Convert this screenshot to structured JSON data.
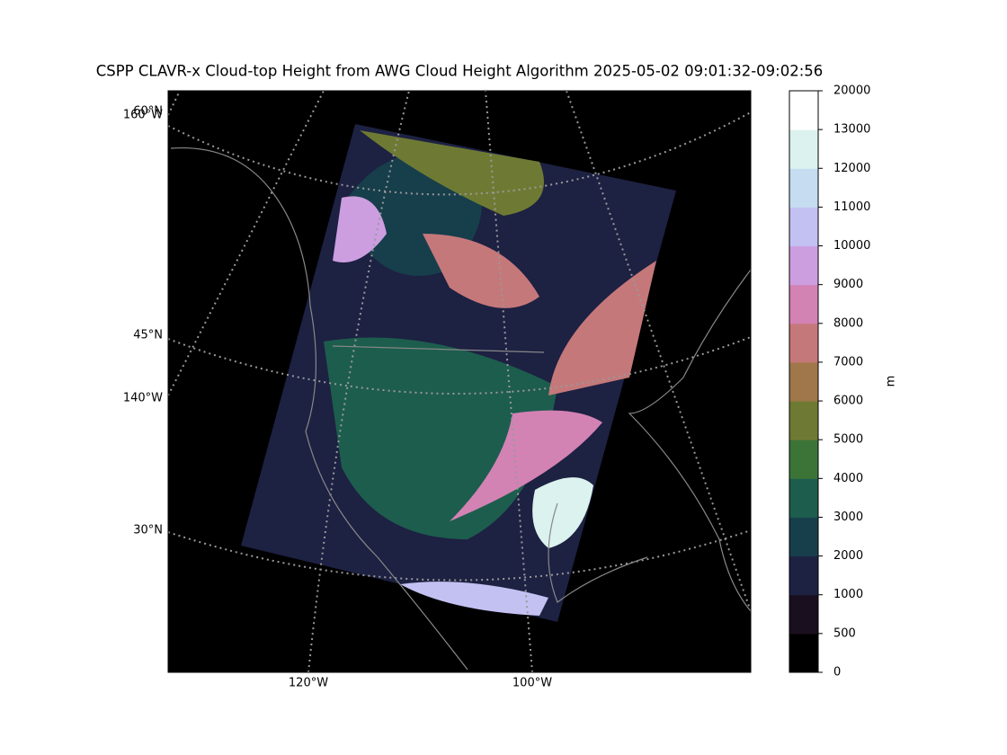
{
  "title": "CSPP CLAVR-x Cloud-top Height from AWG Cloud Height Algorithm 2025-05-02 09:01:32-09:02:56",
  "map": {
    "lat_labels": [
      "60°N",
      "45°N",
      "30°N"
    ],
    "lon_labels_left": [
      "160°W",
      "140°W"
    ],
    "lon_labels_bottom": [
      "120°W",
      "100°W"
    ]
  },
  "colorbar": {
    "label": "m",
    "ticks": [
      0,
      500,
      1000,
      2000,
      3000,
      4000,
      5000,
      6000,
      7000,
      8000,
      9000,
      10000,
      11000,
      12000,
      13000,
      20000
    ],
    "colors": [
      "#000000",
      "#1a0f1e",
      "#1d2142",
      "#173e4b",
      "#1d5d4d",
      "#3c7438",
      "#6e7a33",
      "#a0774a",
      "#c5787a",
      "#d382b4",
      "#cc9ee0",
      "#c3c1f2",
      "#c6dcf0",
      "#dcf2ee",
      "#ffffff"
    ]
  }
}
